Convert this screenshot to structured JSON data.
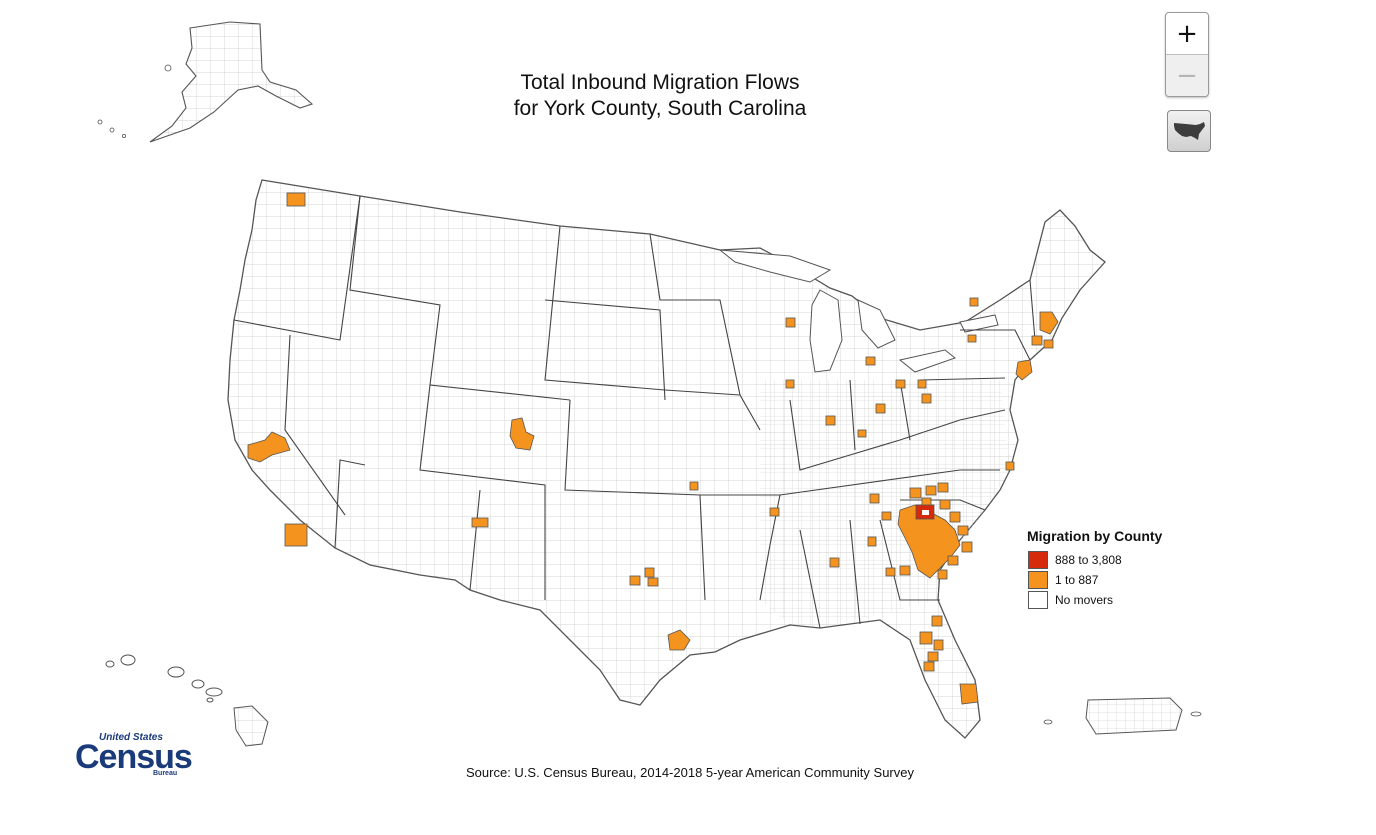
{
  "title": {
    "line1": "Total Inbound Migration Flows",
    "line2": "for York County, South Carolina"
  },
  "controls": {
    "zoom_in_label": "+",
    "zoom_out_label": "−",
    "full_extent_icon": "usa-map-icon"
  },
  "legend": {
    "title": "Migration by County",
    "items": [
      {
        "label": "888 to 3,808",
        "color": "#d62a0c"
      },
      {
        "label": "1 to 887",
        "color": "#f5931f"
      },
      {
        "label": "No movers",
        "color": "#ffffff"
      }
    ]
  },
  "source": "Source: U.S. Census Bureau, 2014-2018 5-year American Community Survey",
  "logo": {
    "line1": "United States",
    "line2": "Census",
    "line3": "Bureau"
  },
  "colors": {
    "high": "#d62a0c",
    "low": "#f5931f",
    "none": "#ffffff",
    "border": "#555555",
    "county_grid": "#c8c8c8"
  },
  "origin_county": "York County, South Carolina"
}
